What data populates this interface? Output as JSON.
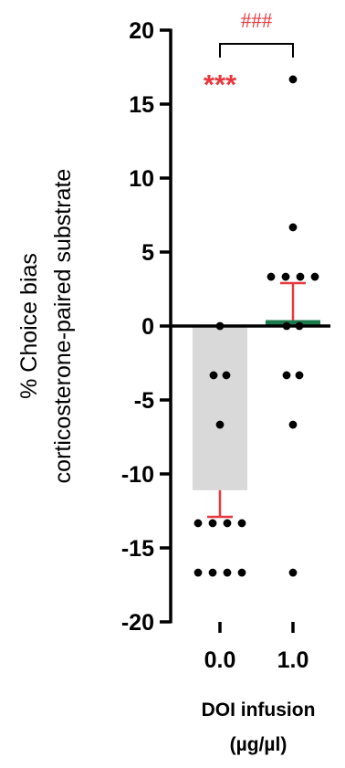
{
  "chart_data": {
    "type": "bar",
    "title": "",
    "ylabel_lines": [
      "% Choice bias",
      "corticosterone-paired substrate"
    ],
    "xlabel_lines": [
      "DOI infusion",
      "(µg/µl)"
    ],
    "ylim": [
      -20,
      20
    ],
    "y_ticks": [
      20,
      15,
      10,
      5,
      0,
      -5,
      -10,
      -15,
      -20
    ],
    "y_tick_labels": [
      "20",
      "15",
      "10",
      "5",
      "0",
      "-5",
      "-10",
      "-15",
      "-20"
    ],
    "categories": [
      "0.0",
      "1.0"
    ],
    "bars": [
      {
        "category": "0.0",
        "mean": -11.1,
        "sem": 1.8,
        "error_direction": "down",
        "color": "#d9d9d9",
        "error_color": "#e8383d"
      },
      {
        "category": "1.0",
        "mean": 0.4,
        "sem": 2.5,
        "error_direction": "up",
        "color": "#1a7a4c",
        "error_color": "#e8383d"
      }
    ],
    "points": [
      {
        "category": "0.0",
        "values": [
          0,
          -3.33,
          -3.33,
          -6.67,
          -13.33,
          -13.33,
          -13.33,
          -13.33,
          -16.67,
          -16.67,
          -16.67,
          -16.67
        ]
      },
      {
        "category": "1.0",
        "values": [
          16.67,
          6.67,
          3.33,
          3.33,
          3.33,
          3.33,
          0,
          0,
          -3.33,
          -3.33,
          -6.67,
          -16.67
        ]
      }
    ],
    "annotations": {
      "vs_zero": {
        "category": "0.0",
        "text": "***"
      },
      "between": {
        "text": "###"
      }
    },
    "colors": {
      "significance": "#e8383d",
      "axis": "#000000",
      "point": "#000000"
    }
  }
}
